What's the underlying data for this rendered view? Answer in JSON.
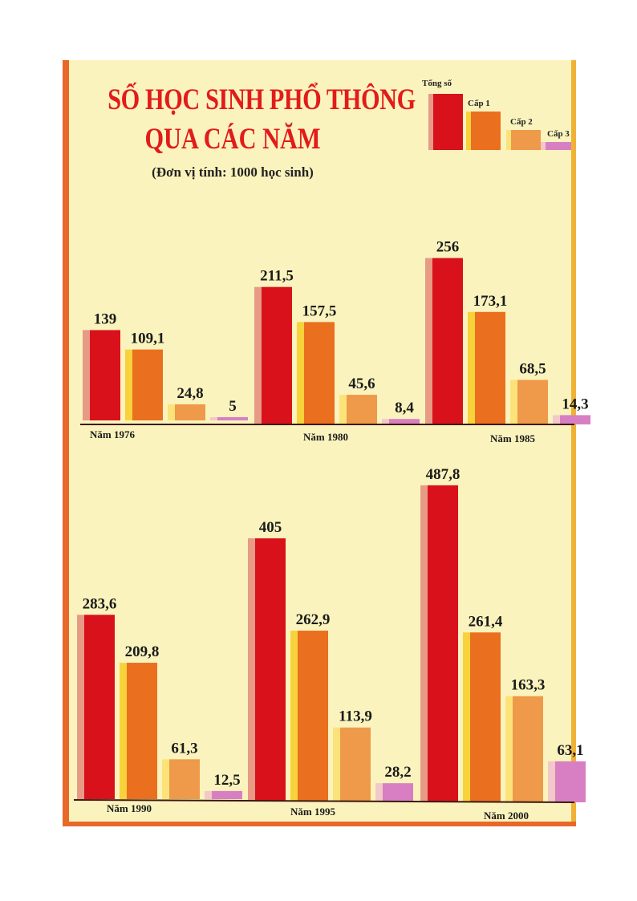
{
  "title_line1": "SỐ HỌC SINH PHỔ THÔNG",
  "title_line2": "QUA CÁC NĂM",
  "subtitle": "(Đơn vị tính: 1000 học sinh)",
  "legend": [
    "Tổng số",
    "Cấp 1",
    "Cấp 2",
    "Cấp 3"
  ],
  "colors": {
    "total": "#d8111b",
    "cap1": "#ea6f1f",
    "cap2": "#ee9a4a",
    "cap3": "#d87fc4",
    "background": "#fbf3bd",
    "title": "#e21b1b"
  },
  "chart_data": {
    "type": "bar",
    "title": "SỐ HỌC SINH PHỔ THÔNG QUA CÁC NĂM",
    "subtitle": "(Đơn vị tính: 1000 học sinh)",
    "unit": "1000 học sinh",
    "legend_position": "top-right",
    "series_names": [
      "Tổng số",
      "Cấp 1",
      "Cấp 2",
      "Cấp 3"
    ],
    "groups": [
      {
        "label": "Năm 1976",
        "values": [
          139,
          109.1,
          24.8,
          5
        ],
        "value_labels": [
          "139",
          "109,1",
          "24,8",
          "5"
        ]
      },
      {
        "label": "Năm 1980",
        "values": [
          211.5,
          157.5,
          45.6,
          8.4
        ],
        "value_labels": [
          "211,5",
          "157,5",
          "45,6",
          "8,4"
        ]
      },
      {
        "label": "Năm 1985",
        "values": [
          256,
          173.1,
          68.5,
          14.3
        ],
        "value_labels": [
          "256",
          "173,1",
          "68,5",
          "14,3"
        ]
      },
      {
        "label": "Năm 1990",
        "values": [
          283.6,
          209.8,
          61.3,
          12.5
        ],
        "value_labels": [
          "283,6",
          "209,8",
          "61,3",
          "12,5"
        ]
      },
      {
        "label": "Năm 1995",
        "values": [
          405,
          262.9,
          113.9,
          28.2
        ],
        "value_labels": [
          "405",
          "262,9",
          "113,9",
          "28,2"
        ]
      },
      {
        "label": "Năm 2000",
        "values": [
          487.8,
          261.4,
          163.3,
          63.1
        ],
        "value_labels": [
          "487,8",
          "261,4",
          "163,3",
          "63,1"
        ]
      }
    ]
  }
}
